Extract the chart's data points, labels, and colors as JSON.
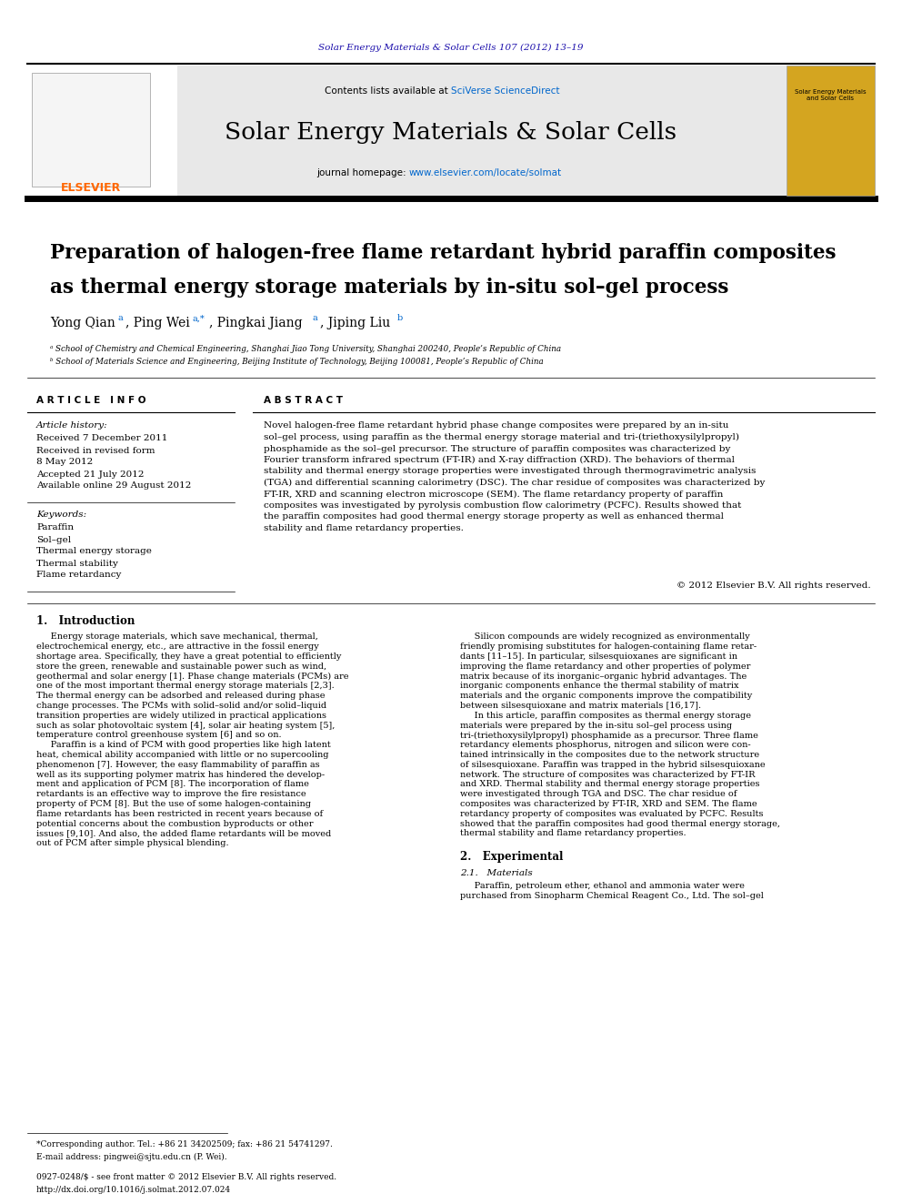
{
  "page_width": 9.92,
  "page_height": 13.23,
  "bg_color": "#ffffff",
  "journal_ref": "Solar Energy Materials & Solar Cells 107 (2012) 13–19",
  "journal_ref_color": "#1a0dab",
  "header_bg": "#e8e8e8",
  "contents_text": "Contents lists available at ",
  "sciverse_text": "SciVerse ScienceDirect",
  "sciverse_color": "#0066cc",
  "journal_name": "Solar Energy Materials & Solar Cells",
  "journal_homepage_prefix": "journal homepage: ",
  "journal_homepage_url": "www.elsevier.com/locate/solmat",
  "journal_homepage_color": "#0066cc",
  "article_title_line1": "Preparation of halogen-free flame retardant hybrid paraffin composites",
  "article_title_line2": "as thermal energy storage materials by in-situ sol–gel process",
  "affil_a": "ᵃ School of Chemistry and Chemical Engineering, Shanghai Jiao Tong University, Shanghai 200240, People’s Republic of China",
  "affil_b": "ᵇ School of Materials Science and Engineering, Beijing Institute of Technology, Beijing 100081, People’s Republic of China",
  "article_info_title": "A R T I C L E   I N F O",
  "abstract_title": "A B S T R A C T",
  "article_history_label": "Article history:",
  "received": "Received 7 December 2011",
  "revised": "Received in revised form",
  "revised2": "8 May 2012",
  "accepted": "Accepted 21 July 2012",
  "available": "Available online 29 August 2012",
  "keywords_label": "Keywords:",
  "keywords": [
    "Paraffin",
    "Sol–gel",
    "Thermal energy storage",
    "Thermal stability",
    "Flame retardancy"
  ],
  "abstract_lines": [
    "Novel halogen-free flame retardant hybrid phase change composites were prepared by an in-situ",
    "sol–gel process, using paraffin as the thermal energy storage material and tri-(triethoxysilylpropyl)",
    "phosphamide as the sol–gel precursor. The structure of paraffin composites was characterized by",
    "Fourier transform infrared spectrum (FT-IR) and X-ray diffraction (XRD). The behaviors of thermal",
    "stability and thermal energy storage properties were investigated through thermogravimetric analysis",
    "(TGA) and differential scanning calorimetry (DSC). The char residue of composites was characterized by",
    "FT-IR, XRD and scanning electron microscope (SEM). The flame retardancy property of paraffin",
    "composites was investigated by pyrolysis combustion flow calorimetry (PCFC). Results showed that",
    "the paraffin composites had good thermal energy storage property as well as enhanced thermal",
    "stability and flame retardancy properties."
  ],
  "copyright": "© 2012 Elsevier B.V. All rights reserved.",
  "intro_title": "1.   Introduction",
  "intro_col1_lines": [
    "     Energy storage materials, which save mechanical, thermal,",
    "electrochemical energy, etc., are attractive in the fossil energy",
    "shortage area. Specifically, they have a great potential to efficiently",
    "store the green, renewable and sustainable power such as wind,",
    "geothermal and solar energy [1]. Phase change materials (PCMs) are",
    "one of the most important thermal energy storage materials [2,3].",
    "The thermal energy can be adsorbed and released during phase",
    "change processes. The PCMs with solid–solid and/or solid–liquid",
    "transition properties are widely utilized in practical applications",
    "such as solar photovoltaic system [4], solar air heating system [5],",
    "temperature control greenhouse system [6] and so on.",
    "     Paraffin is a kind of PCM with good properties like high latent",
    "heat, chemical ability accompanied with little or no supercooling",
    "phenomenon [7]. However, the easy flammability of paraffin as",
    "well as its supporting polymer matrix has hindered the develop-",
    "ment and application of PCM [8]. The incorporation of flame",
    "retardants is an effective way to improve the fire resistance",
    "property of PCM [8]. But the use of some halogen-containing",
    "flame retardants has been restricted in recent years because of",
    "potential concerns about the combustion byproducts or other",
    "issues [9,10]. And also, the added flame retardants will be moved",
    "out of PCM after simple physical blending."
  ],
  "intro_col2_lines": [
    "     Silicon compounds are widely recognized as environmentally",
    "friendly promising substitutes for halogen-containing flame retar-",
    "dants [11–15]. In particular, silsesquioxanes are significant in",
    "improving the flame retardancy and other properties of polymer",
    "matrix because of its inorganic–organic hybrid advantages. The",
    "inorganic components enhance the thermal stability of matrix",
    "materials and the organic components improve the compatibility",
    "between silsesquioxane and matrix materials [16,17].",
    "     In this article, paraffin composites as thermal energy storage",
    "materials were prepared by the in-situ sol–gel process using",
    "tri-(triethoxysilylpropyl) phosphamide as a precursor. Three flame",
    "retardancy elements phosphorus, nitrogen and silicon were con-",
    "tained intrinsically in the composites due to the network structure",
    "of silsesquioxane. Paraffin was trapped in the hybrid silsesquioxane",
    "network. The structure of composites was characterized by FT-IR",
    "and XRD. Thermal stability and thermal energy storage properties",
    "were investigated through TGA and DSC. The char residue of",
    "composites was characterized by FT-IR, XRD and SEM. The flame",
    "retardancy property of composites was evaluated by PCFC. Results",
    "showed that the paraffin composites had good thermal energy storage,",
    "thermal stability and flame retardancy properties."
  ],
  "section2_title": "2.   Experimental",
  "section21_title": "2.1.   Materials",
  "section21_lines": [
    "     Paraffin, petroleum ether, ethanol and ammonia water were",
    "purchased from Sinopharm Chemical Reagent Co., Ltd. The sol–gel"
  ],
  "footnote_star": "*Corresponding author. Tel.: +86 21 34202509; fax: +86 21 54741297.",
  "footnote_email": "E-mail address: pingwei@sjtu.edu.cn (P. Wei).",
  "footer_issn": "0927-0248/$ - see front matter © 2012 Elsevier B.V. All rights reserved.",
  "footer_doi": "http://dx.doi.org/10.1016/j.solmat.2012.07.024",
  "elsevier_color": "#FF6600",
  "cover_bg": "#d4a520"
}
